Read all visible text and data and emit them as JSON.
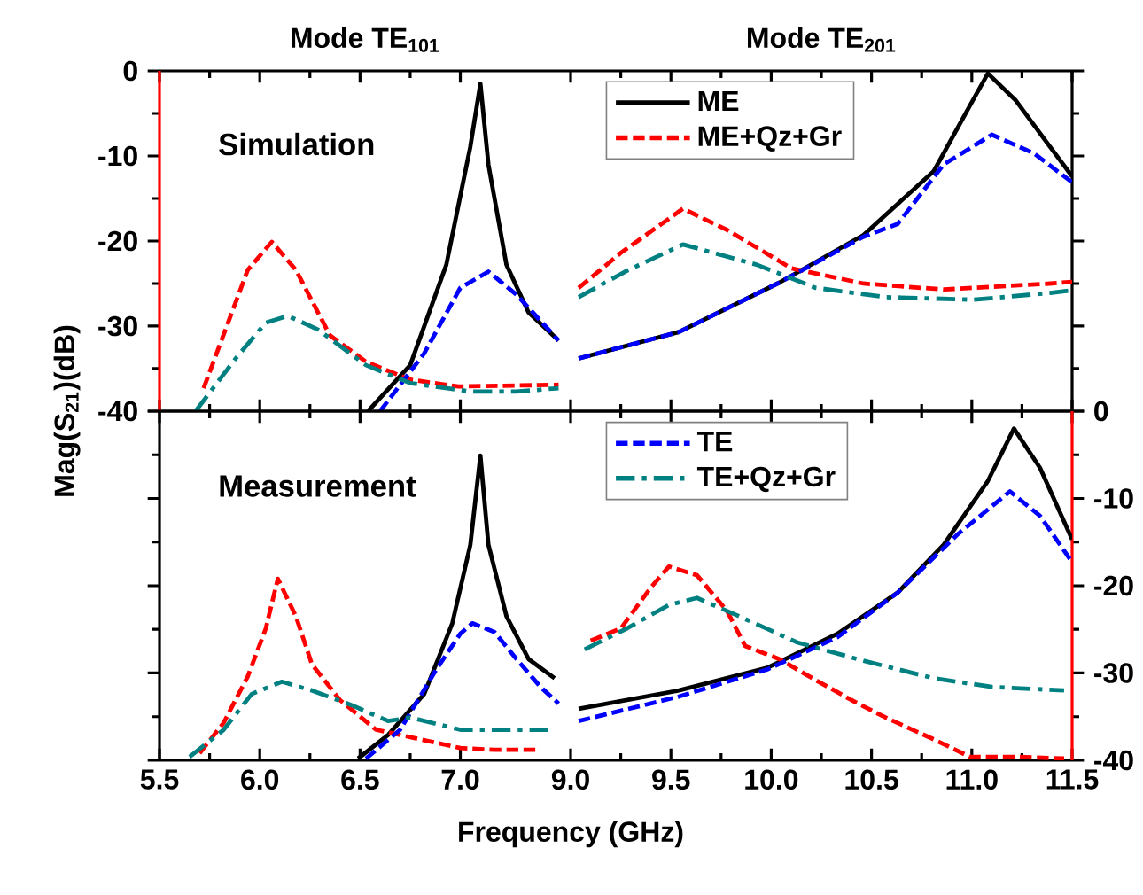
{
  "chart_data": [
    {
      "type": "line",
      "title": "Mode TE$_{101}$",
      "ylabel": "Mag(S$_{21}$)(dB)",
      "annotations": [
        "Simulation"
      ],
      "xlim": [
        5.5,
        7.55
      ],
      "ylim": [
        -40,
        0
      ],
      "xticks": [
        5.5,
        6,
        6.5,
        7
      ],
      "yticks": [
        0,
        -10,
        -20,
        -30,
        -40
      ],
      "tick_labels": "y",
      "series": [
        {
          "color": "#000000",
          "line_style": "solid",
          "x": [
            6.54,
            6.75,
            6.93,
            7.05,
            7.1,
            7.14,
            7.23,
            7.34,
            7.49
          ],
          "values": [
            -40,
            -34.6,
            -22.8,
            -8.9,
            -1.5,
            -11,
            -22.8,
            -28.4,
            -31.7
          ]
        },
        {
          "color": "#ff0000",
          "line_style": "dashed",
          "x": [
            5.72,
            5.94,
            6.06,
            6.18,
            6.35,
            6.53,
            6.75,
            6.99,
            7.49
          ],
          "values": [
            -37.3,
            -23.4,
            -20.1,
            -23.4,
            -31.1,
            -34.2,
            -36.3,
            -37.1,
            -36.9
          ]
        },
        {
          "color": "#0000ff",
          "line_style": "dashed",
          "x": [
            6.6,
            6.82,
            7.0,
            7.14,
            7.28,
            7.49
          ],
          "values": [
            -40,
            -33.2,
            -25.5,
            -23.6,
            -26.3,
            -31.7
          ]
        },
        {
          "color": "#008080",
          "line_style": "dashdot",
          "x": [
            5.68,
            5.88,
            6.03,
            6.14,
            6.29,
            6.53,
            6.75,
            7.05,
            7.28,
            7.49
          ],
          "values": [
            -40,
            -33.8,
            -29.6,
            -28.8,
            -30.4,
            -34.6,
            -36.7,
            -37.7,
            -37.7,
            -37.3
          ]
        }
      ]
    },
    {
      "type": "line",
      "title": "Mode TE$_{201}$",
      "legend": "top left",
      "xlim": [
        9,
        11.5
      ],
      "ylim": [
        -40,
        0
      ],
      "xticks": [
        9,
        9.5,
        10,
        10.5,
        11,
        11.5
      ],
      "yticks": [
        0,
        -10,
        -20,
        -30,
        -40
      ],
      "tick_labels": false,
      "series": [
        {
          "name": "ME",
          "color": "#000000",
          "line_style": "solid",
          "x": [
            9.04,
            9.54,
            10.04,
            10.46,
            10.81,
            10.99,
            11.08,
            11.22,
            11.37,
            11.5
          ],
          "values": [
            -33.8,
            -30.7,
            -24.9,
            -19.3,
            -11.8,
            -4.1,
            -0.3,
            -3.5,
            -8.3,
            -12.4
          ]
        },
        {
          "name": "ME+Qz+Gr",
          "color": "#ff0000",
          "line_style": "dashed",
          "x": [
            9.04,
            9.25,
            9.56,
            9.78,
            10.1,
            10.46,
            10.86,
            11.39,
            11.5
          ],
          "values": [
            -25.5,
            -21.4,
            -16.2,
            -18.7,
            -23.2,
            -25,
            -25.7,
            -25,
            -24.8
          ]
        },
        {
          "color": "#0000ff",
          "line_style": "dashed",
          "x": [
            9.04,
            9.54,
            10.04,
            10.46,
            10.63,
            10.86,
            11.1,
            11.31,
            11.5
          ],
          "values": [
            -33.8,
            -30.7,
            -24.9,
            -19.5,
            -18,
            -11,
            -7.5,
            -9.7,
            -13.1
          ]
        },
        {
          "color": "#008080",
          "line_style": "dashdot",
          "x": [
            9.04,
            9.28,
            9.56,
            9.93,
            10.22,
            10.57,
            11.01,
            11.39,
            11.5
          ],
          "values": [
            -26.6,
            -23.5,
            -20.4,
            -22.8,
            -25.5,
            -26.6,
            -26.9,
            -26.1,
            -25.8
          ]
        }
      ]
    },
    {
      "type": "line",
      "annotations": [
        "Measurement"
      ],
      "xlim": [
        5.5,
        7.55
      ],
      "ylim": [
        -40,
        0
      ],
      "xticks": [
        5.5,
        {
          "value": 6,
          "label": "6.0"
        },
        6.5,
        {
          "value": 7,
          "label": "7.0"
        }
      ],
      "yticks": [
        0,
        -10,
        -20,
        -30,
        -40
      ],
      "tick_labels": "x",
      "series": [
        {
          "color": "#000000",
          "line_style": "solid",
          "x": [
            6.49,
            6.64,
            6.82,
            6.96,
            7.05,
            7.1,
            7.14,
            7.23,
            7.34,
            7.47
          ],
          "values": [
            -39.8,
            -37.1,
            -32.4,
            -24.3,
            -15.3,
            -5.1,
            -15.3,
            -23.5,
            -28.4,
            -30.6
          ]
        },
        {
          "color": "#ff0000",
          "line_style": "dashed",
          "x": [
            5.7,
            5.82,
            5.94,
            6.03,
            6.09,
            6.18,
            6.26,
            6.4,
            6.58,
            6.7,
            6.84,
            7.0,
            7.17,
            7.4
          ],
          "values": [
            -39.2,
            -35.7,
            -30.4,
            -24.9,
            -19.2,
            -23.5,
            -29,
            -33.1,
            -36.5,
            -37.1,
            -37.8,
            -38.6,
            -38.8,
            -38.8
          ]
        },
        {
          "color": "#0000ff",
          "line_style": "dashed",
          "x": [
            6.53,
            6.7,
            6.88,
            7.0,
            7.06,
            7.17,
            7.28,
            7.4,
            7.49
          ],
          "values": [
            -39.8,
            -36.5,
            -29.6,
            -25.5,
            -24.3,
            -25.3,
            -28.4,
            -31.6,
            -33.5
          ]
        },
        {
          "color": "#008080",
          "line_style": "dashdot",
          "x": [
            5.65,
            5.82,
            5.96,
            6.11,
            6.26,
            6.46,
            6.64,
            6.75,
            7.0,
            7.23,
            7.45
          ],
          "values": [
            -39.6,
            -36.5,
            -32.4,
            -31,
            -32,
            -33.7,
            -35.5,
            -35.1,
            -36.5,
            -36.5,
            -36.5
          ]
        }
      ]
    },
    {
      "type": "line",
      "xlabel": "Frequency (GHz)",
      "legend": "top left",
      "xlim": [
        9,
        11.5
      ],
      "ylim": [
        -40,
        0
      ],
      "xticks": [
        {
          "value": 9,
          "label": "9.0"
        },
        9.5,
        {
          "value": 10,
          "label": "10.0"
        },
        10.5,
        {
          "value": 11,
          "label": "11.0"
        },
        11.5
      ],
      "yticks": [
        0,
        -10,
        -20,
        -30,
        -40
      ],
      "series": [
        {
          "color": "#000000",
          "line_style": "solid",
          "x": [
            9.04,
            9.54,
            9.98,
            10.33,
            10.63,
            10.86,
            11.08,
            11.21,
            11.34,
            11.5
          ],
          "values": [
            -34.1,
            -32,
            -29.4,
            -25.5,
            -20.8,
            -15.3,
            -8,
            -2,
            -6.5,
            -14.7
          ]
        },
        {
          "color": "#ff0000",
          "line_style": "dashed",
          "x": [
            9.1,
            9.25,
            9.4,
            9.49,
            9.63,
            9.78,
            9.87,
            10.04,
            10.19,
            10.4,
            10.57,
            10.81,
            10.99,
            11.22,
            11.46
          ],
          "values": [
            -26.3,
            -24.9,
            -20.2,
            -17.8,
            -18.8,
            -22.9,
            -26.9,
            -28.4,
            -30.4,
            -33.1,
            -35.1,
            -37.6,
            -39.6,
            -39.6,
            -39.8
          ]
        },
        {
          "name": "TE",
          "color": "#0000ff",
          "line_style": "dashed",
          "x": [
            9.04,
            9.54,
            9.98,
            10.33,
            10.63,
            10.93,
            11.19,
            11.34,
            11.5
          ],
          "values": [
            -35.5,
            -32.7,
            -29.6,
            -25.9,
            -20.8,
            -14.1,
            -9.2,
            -12,
            -17.3
          ]
        },
        {
          "name": "TE+Qz+Gr",
          "color": "#008080",
          "line_style": "dashdot",
          "x": [
            9.07,
            9.28,
            9.49,
            9.63,
            9.84,
            10.13,
            10.46,
            10.81,
            11.1,
            11.46
          ],
          "values": [
            -27.3,
            -24.9,
            -22.2,
            -21.4,
            -23.5,
            -26.5,
            -28.6,
            -30.6,
            -31.6,
            -32
          ]
        }
      ]
    }
  ]
}
